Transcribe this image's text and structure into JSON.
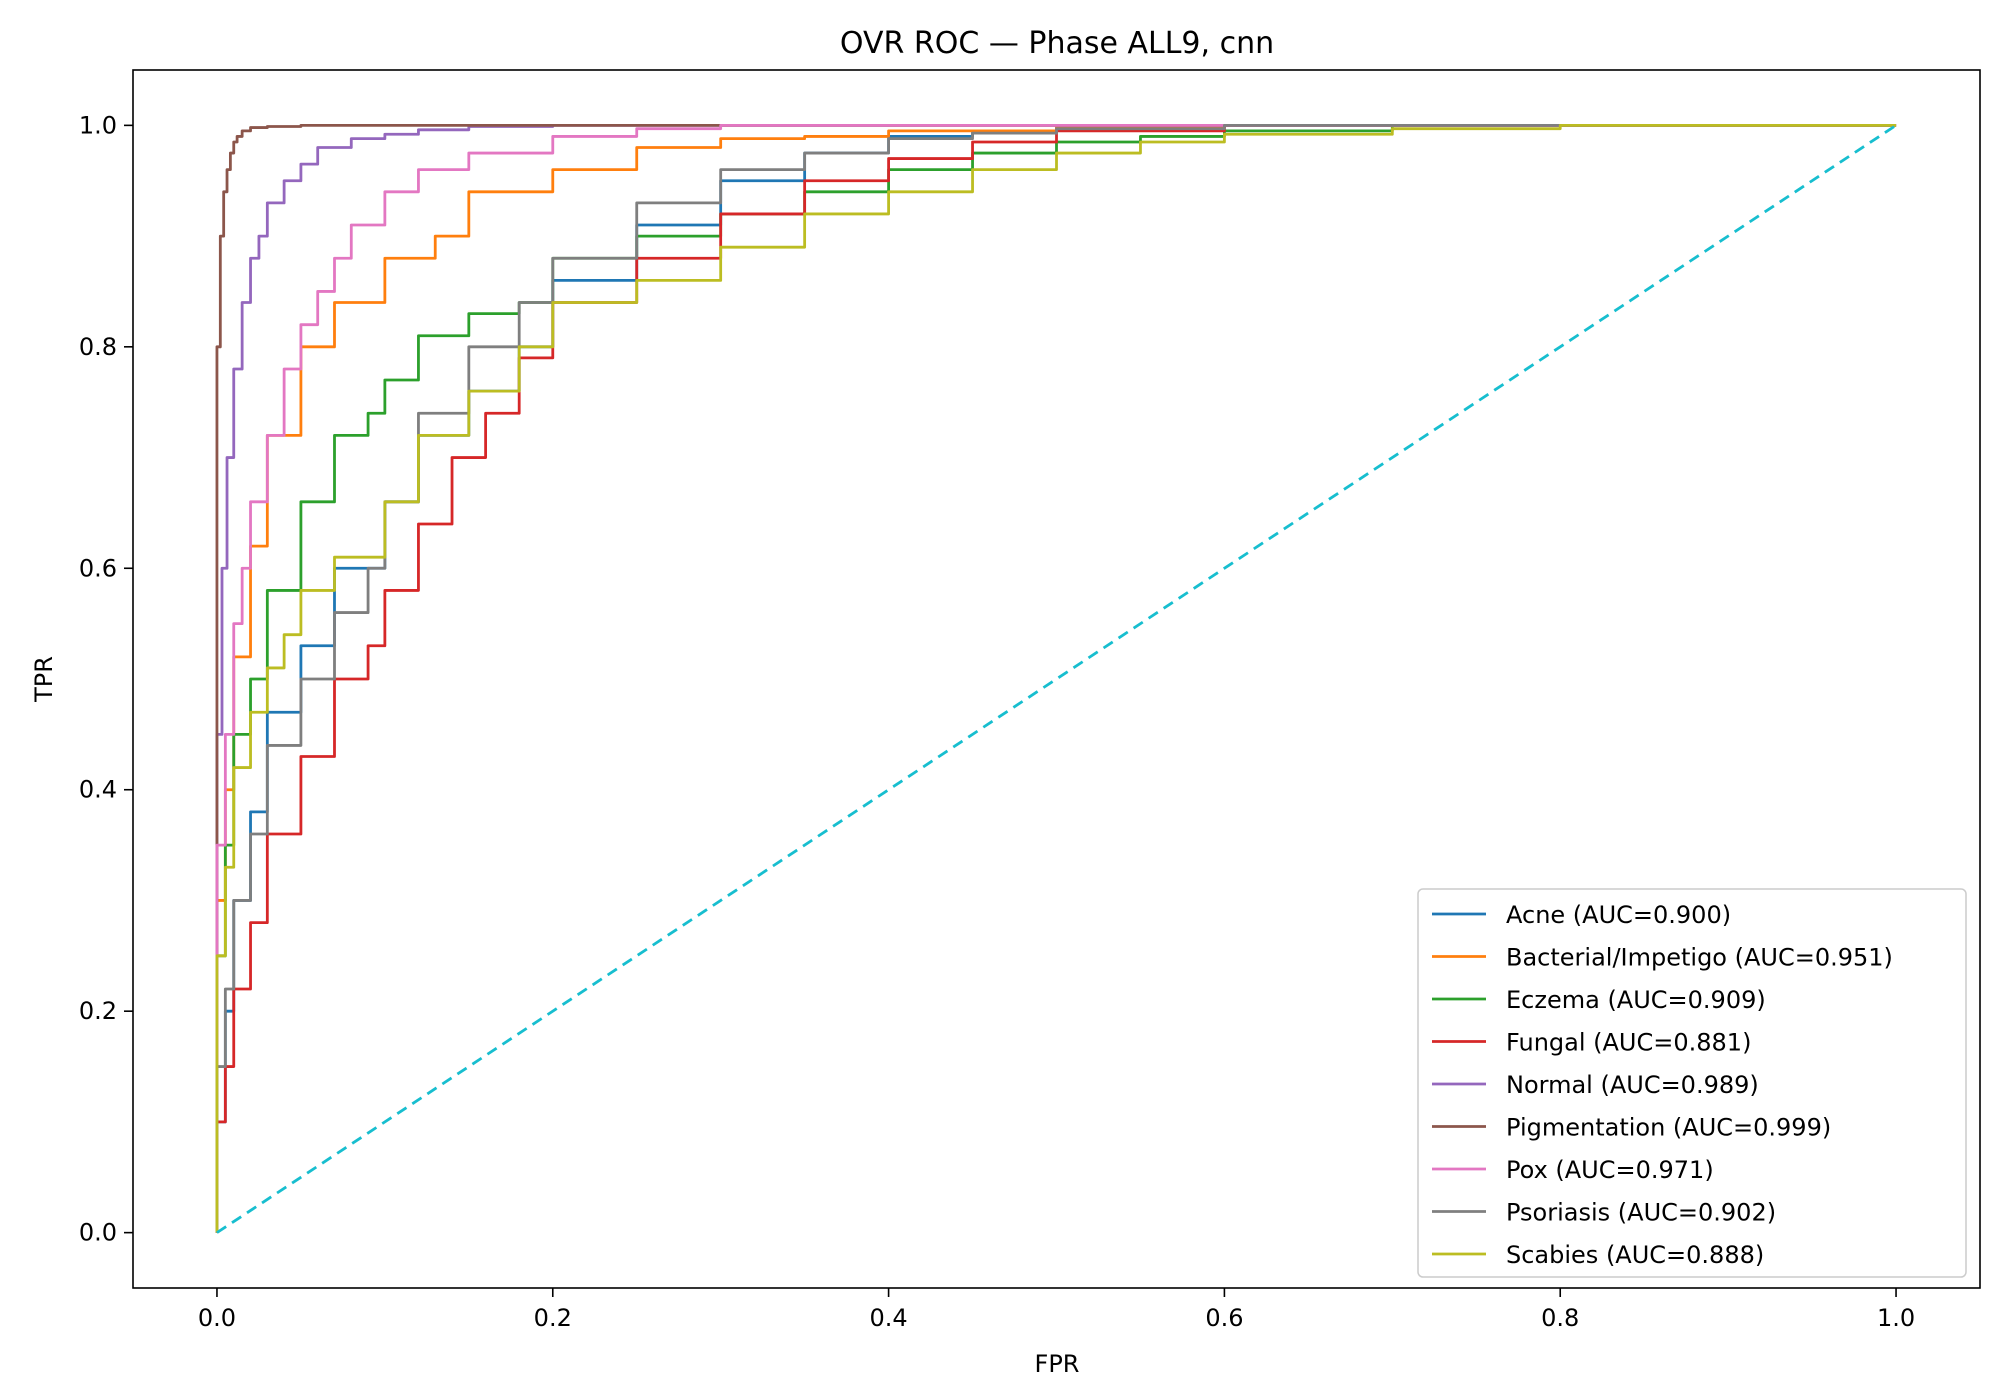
{
  "chart_data": {
    "type": "line",
    "title": "OVR ROC — Phase ALL9, cnn",
    "xlabel": "FPR",
    "ylabel": "TPR",
    "xlim": [
      -0.05,
      1.05
    ],
    "ylim": [
      -0.05,
      1.05
    ],
    "xticks": [
      "0.0",
      "0.2",
      "0.4",
      "0.6",
      "0.8",
      "1.0"
    ],
    "yticks": [
      "0.0",
      "0.2",
      "0.4",
      "0.6",
      "0.8",
      "1.0"
    ],
    "grid": false,
    "legend_position": "lower-right",
    "series": [
      {
        "name": "Acne (AUC=0.900)",
        "color": "#1f77b4",
        "x": [
          0,
          0,
          0.005,
          0.01,
          0.02,
          0.03,
          0.05,
          0.07,
          0.1,
          0.12,
          0.15,
          0.18,
          0.2,
          0.25,
          0.3,
          0.35,
          0.4,
          0.45,
          0.5,
          0.6,
          0.7,
          0.8,
          1
        ],
        "y": [
          0,
          0.05,
          0.1,
          0.2,
          0.3,
          0.38,
          0.47,
          0.53,
          0.6,
          0.66,
          0.72,
          0.76,
          0.8,
          0.86,
          0.91,
          0.95,
          0.975,
          0.99,
          0.995,
          0.998,
          1,
          1,
          1
        ]
      },
      {
        "name": "Bacterial/Impetigo (AUC=0.951)",
        "color": "#ff7f0e",
        "x": [
          0,
          0,
          0.005,
          0.01,
          0.02,
          0.03,
          0.05,
          0.07,
          0.1,
          0.13,
          0.15,
          0.2,
          0.25,
          0.3,
          0.35,
          0.4,
          0.5,
          0.6,
          0.8,
          1
        ],
        "y": [
          0,
          0.2,
          0.3,
          0.4,
          0.52,
          0.62,
          0.72,
          0.8,
          0.84,
          0.88,
          0.9,
          0.94,
          0.96,
          0.98,
          0.988,
          0.99,
          0.995,
          0.998,
          1,
          1
        ]
      },
      {
        "name": "Eczema (AUC=0.909)",
        "color": "#2ca02c",
        "x": [
          0,
          0,
          0.005,
          0.01,
          0.02,
          0.03,
          0.05,
          0.07,
          0.09,
          0.1,
          0.12,
          0.15,
          0.18,
          0.2,
          0.25,
          0.3,
          0.35,
          0.4,
          0.45,
          0.5,
          0.55,
          0.6,
          0.7,
          0.8,
          1
        ],
        "y": [
          0,
          0.15,
          0.25,
          0.35,
          0.45,
          0.5,
          0.58,
          0.66,
          0.72,
          0.74,
          0.77,
          0.81,
          0.83,
          0.84,
          0.88,
          0.9,
          0.92,
          0.94,
          0.96,
          0.975,
          0.985,
          0.99,
          0.995,
          1,
          1
        ]
      },
      {
        "name": "Fungal (AUC=0.881)",
        "color": "#d62728",
        "x": [
          0,
          0,
          0.005,
          0.01,
          0.02,
          0.03,
          0.05,
          0.07,
          0.09,
          0.1,
          0.12,
          0.14,
          0.16,
          0.18,
          0.2,
          0.25,
          0.3,
          0.35,
          0.4,
          0.45,
          0.5,
          0.6,
          0.7,
          0.8,
          1
        ],
        "y": [
          0,
          0.05,
          0.1,
          0.15,
          0.22,
          0.28,
          0.36,
          0.43,
          0.5,
          0.53,
          0.58,
          0.64,
          0.7,
          0.74,
          0.79,
          0.84,
          0.88,
          0.92,
          0.95,
          0.97,
          0.985,
          0.995,
          1,
          1,
          1
        ]
      },
      {
        "name": "Normal (AUC=0.989)",
        "color": "#9467bd",
        "x": [
          0,
          0,
          0.003,
          0.006,
          0.01,
          0.015,
          0.02,
          0.025,
          0.03,
          0.04,
          0.05,
          0.06,
          0.08,
          0.1,
          0.12,
          0.15,
          0.2,
          0.3,
          0.5,
          1
        ],
        "y": [
          0,
          0.3,
          0.45,
          0.6,
          0.7,
          0.78,
          0.84,
          0.88,
          0.9,
          0.93,
          0.95,
          0.965,
          0.98,
          0.988,
          0.992,
          0.996,
          0.999,
          1,
          1,
          1
        ]
      },
      {
        "name": "Pigmentation (AUC=0.999)",
        "color": "#8c564b",
        "x": [
          0,
          0,
          0.002,
          0.004,
          0.006,
          0.008,
          0.01,
          0.012,
          0.015,
          0.02,
          0.03,
          0.05,
          0.1,
          1
        ],
        "y": [
          0,
          0.6,
          0.8,
          0.9,
          0.94,
          0.96,
          0.975,
          0.985,
          0.99,
          0.995,
          0.998,
          0.999,
          1,
          1
        ]
      },
      {
        "name": "Pox (AUC=0.971)",
        "color": "#e377c2",
        "x": [
          0,
          0,
          0.005,
          0.01,
          0.015,
          0.02,
          0.03,
          0.04,
          0.05,
          0.06,
          0.07,
          0.08,
          0.1,
          0.12,
          0.15,
          0.2,
          0.25,
          0.3,
          0.4,
          0.5,
          1
        ],
        "y": [
          0,
          0.2,
          0.35,
          0.45,
          0.55,
          0.6,
          0.66,
          0.72,
          0.78,
          0.82,
          0.85,
          0.88,
          0.91,
          0.94,
          0.96,
          0.975,
          0.99,
          0.997,
          1,
          1,
          1
        ]
      },
      {
        "name": "Psoriasis (AUC=0.902)",
        "color": "#7f7f7f",
        "x": [
          0,
          0,
          0.005,
          0.01,
          0.02,
          0.03,
          0.05,
          0.07,
          0.09,
          0.1,
          0.12,
          0.15,
          0.18,
          0.2,
          0.25,
          0.3,
          0.35,
          0.4,
          0.45,
          0.5,
          0.6,
          0.7,
          0.8,
          1
        ],
        "y": [
          0,
          0.1,
          0.15,
          0.22,
          0.3,
          0.36,
          0.44,
          0.5,
          0.56,
          0.6,
          0.66,
          0.74,
          0.8,
          0.84,
          0.88,
          0.93,
          0.96,
          0.975,
          0.988,
          0.993,
          0.997,
          1,
          1,
          1
        ]
      },
      {
        "name": "Scabies (AUC=0.888)",
        "color": "#bcbd22",
        "x": [
          0,
          0,
          0.005,
          0.01,
          0.02,
          0.03,
          0.04,
          0.05,
          0.07,
          0.1,
          0.12,
          0.15,
          0.18,
          0.2,
          0.25,
          0.3,
          0.35,
          0.4,
          0.45,
          0.5,
          0.55,
          0.6,
          0.7,
          0.8,
          0.9,
          1
        ],
        "y": [
          0,
          0.15,
          0.25,
          0.33,
          0.42,
          0.47,
          0.51,
          0.54,
          0.58,
          0.61,
          0.66,
          0.72,
          0.76,
          0.8,
          0.84,
          0.86,
          0.89,
          0.92,
          0.94,
          0.96,
          0.975,
          0.985,
          0.992,
          0.997,
          1,
          1
        ]
      },
      {
        "name": "",
        "color": "#17becf",
        "dashed": true,
        "x": [
          0,
          1
        ],
        "y": [
          0,
          1
        ]
      }
    ]
  }
}
